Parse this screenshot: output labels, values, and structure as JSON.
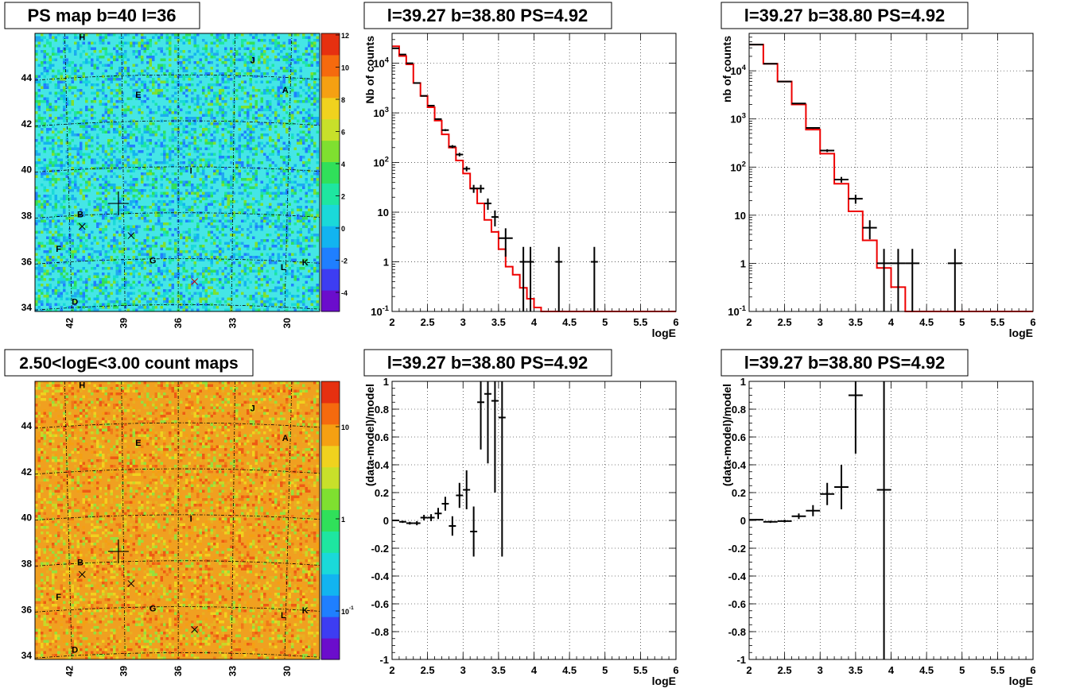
{
  "colors": {
    "data": "#000000",
    "model": "#ee0000",
    "grid": "#000000",
    "frame": "#000000"
  },
  "map_colorscale": [
    "#6b0dcc",
    "#3d3df2",
    "#1f7fff",
    "#12b4f0",
    "#1ad9d9",
    "#1ee6a0",
    "#30e05a",
    "#7fe030",
    "#c8e02a",
    "#f0d21e",
    "#f5a012",
    "#f56a0e",
    "#e63010"
  ],
  "chart_data": [
    {
      "id": "ps-map",
      "type": "heatmap",
      "title": "PS map b=40 l=36",
      "xticks": [
        "42",
        "39",
        "36",
        "33",
        "30"
      ],
      "yticks": [
        "44",
        "42",
        "40",
        "38",
        "36",
        "34"
      ],
      "colorbar_ticks": [
        "12",
        "10",
        "8",
        "6",
        "4",
        "2",
        "0",
        "-2",
        "-4"
      ],
      "background": "#44e6e6",
      "markers": [
        {
          "label": "H",
          "x": 41.3,
          "y": 45.6
        },
        {
          "label": "J",
          "x": 31.9,
          "y": 44.6
        },
        {
          "label": "E",
          "x": 38.2,
          "y": 43.1
        },
        {
          "label": "A",
          "x": 30.1,
          "y": 43.3
        },
        {
          "label": "I",
          "x": 35.3,
          "y": 39.8
        },
        {
          "label": "B",
          "x": 41.4,
          "y": 37.9
        },
        {
          "label": "F",
          "x": 42.6,
          "y": 36.4
        },
        {
          "label": "G",
          "x": 37.4,
          "y": 35.9
        },
        {
          "label": "L",
          "x": 30.2,
          "y": 35.6
        },
        {
          "label": "K",
          "x": 29.0,
          "y": 35.8
        },
        {
          "label": "D",
          "x": 41.7,
          "y": 34.1
        }
      ],
      "crosses": [
        {
          "x": 41.3,
          "y": 37.5
        },
        {
          "x": 38.6,
          "y": 37.1
        },
        {
          "x": 35.1,
          "y": 35.1
        }
      ],
      "big_cross": {
        "x": 39.3,
        "y": 38.5
      }
    },
    {
      "id": "spec-1",
      "type": "line",
      "title": "l=39.27 b=38.80 PS=4.92",
      "xlabel": "logE",
      "ylabel": "Nb of counts",
      "xlim": [
        2,
        6
      ],
      "ylim": [
        0.1,
        40000
      ],
      "yscale": "log",
      "xticks": [
        "2",
        "2.5",
        "3",
        "3.5",
        "4",
        "4.5",
        "5",
        "5.5",
        "6"
      ],
      "yticks": [
        "10^-1",
        "1",
        "10",
        "10^2",
        "10^3",
        "10^4"
      ],
      "model": {
        "edges": [
          2.0,
          2.1,
          2.2,
          2.3,
          2.4,
          2.5,
          2.6,
          2.7,
          2.8,
          2.9,
          3.0,
          3.1,
          3.2,
          3.3,
          3.4,
          3.5,
          3.6,
          3.7,
          3.8,
          3.9,
          4.0,
          4.1,
          4.2,
          6.0
        ],
        "values": [
          22000,
          14000,
          9500,
          4000,
          2200,
          1300,
          700,
          370,
          200,
          110,
          60,
          30,
          15,
          7,
          4,
          1.8,
          0.8,
          0.55,
          0.3,
          0.18,
          0.12,
          0.1,
          0.1
        ]
      },
      "data": [
        {
          "x": 2.05,
          "y": 20000,
          "xerr": 0.05
        },
        {
          "x": 2.15,
          "y": 15000,
          "xerr": 0.05
        },
        {
          "x": 2.25,
          "y": 10000,
          "xerr": 0.05
        },
        {
          "x": 2.35,
          "y": 4000,
          "xerr": 0.05
        },
        {
          "x": 2.45,
          "y": 2200,
          "xerr": 0.05
        },
        {
          "x": 2.55,
          "y": 1400,
          "xerr": 0.05
        },
        {
          "x": 2.65,
          "y": 750,
          "xerr": 0.05
        },
        {
          "x": 2.75,
          "y": 450,
          "xerr": 0.05
        },
        {
          "x": 2.85,
          "y": 210,
          "xerr": 0.05
        },
        {
          "x": 2.95,
          "y": 145,
          "xerr": 0.05
        },
        {
          "x": 3.05,
          "y": 75,
          "xerr": 0.05
        },
        {
          "x": 3.15,
          "y": 30,
          "xerr": 0.05
        },
        {
          "x": 3.25,
          "y": 30,
          "xerr": 0.05
        },
        {
          "x": 3.35,
          "y": 15,
          "xerr": 0.05
        },
        {
          "x": 3.45,
          "y": 8,
          "xerr": 0.05
        },
        {
          "x": 3.6,
          "y": 3,
          "xerr": 0.1
        },
        {
          "x": 3.85,
          "y": 1,
          "xerr": 0.05
        },
        {
          "x": 3.95,
          "y": 1,
          "xerr": 0.05
        },
        {
          "x": 4.35,
          "y": 1,
          "xerr": 0.05
        },
        {
          "x": 4.85,
          "y": 1,
          "xerr": 0.05
        }
      ]
    },
    {
      "id": "spec-2",
      "type": "line",
      "title": "l=39.27 b=38.80 PS=4.92",
      "xlabel": "logE",
      "ylabel": "nb of counts",
      "xlim": [
        2,
        6
      ],
      "ylim": [
        0.1,
        60000
      ],
      "yscale": "log",
      "xticks": [
        "2",
        "2.5",
        "3",
        "3.5",
        "4",
        "4.5",
        "5",
        "5.5",
        "6"
      ],
      "yticks": [
        "10^-1",
        "1",
        "10",
        "10^2",
        "10^3",
        "10^4"
      ],
      "model": {
        "edges": [
          2.0,
          2.2,
          2.4,
          2.6,
          2.8,
          3.0,
          3.2,
          3.4,
          3.6,
          3.8,
          4.0,
          4.2,
          6.0
        ],
        "values": [
          35000,
          14000,
          6000,
          2000,
          600,
          190,
          45,
          12,
          3,
          0.8,
          0.32,
          0.1
        ]
      },
      "data": [
        {
          "x": 2.1,
          "y": 35000,
          "xerr": 0.1
        },
        {
          "x": 2.3,
          "y": 14000,
          "xerr": 0.1
        },
        {
          "x": 2.5,
          "y": 6000,
          "xerr": 0.1
        },
        {
          "x": 2.7,
          "y": 2100,
          "xerr": 0.1
        },
        {
          "x": 2.9,
          "y": 650,
          "xerr": 0.1
        },
        {
          "x": 3.1,
          "y": 220,
          "xerr": 0.1
        },
        {
          "x": 3.3,
          "y": 55,
          "xerr": 0.1
        },
        {
          "x": 3.5,
          "y": 22,
          "xerr": 0.1
        },
        {
          "x": 3.7,
          "y": 5.5,
          "xerr": 0.1
        },
        {
          "x": 3.9,
          "y": 1,
          "xerr": 0.1
        },
        {
          "x": 4.1,
          "y": 1,
          "xerr": 0.1
        },
        {
          "x": 4.3,
          "y": 1,
          "xerr": 0.1
        },
        {
          "x": 4.9,
          "y": 1,
          "xerr": 0.1
        }
      ]
    },
    {
      "id": "count-map",
      "type": "heatmap",
      "title": "2.50<logE<3.00 count maps",
      "xticks": [
        "42",
        "39",
        "36",
        "33",
        "30"
      ],
      "yticks": [
        "44",
        "42",
        "40",
        "38",
        "36",
        "34"
      ],
      "colorbar_ticks": [
        "10",
        "1",
        "10^-1"
      ],
      "background": "#f0a020",
      "markers": [
        {
          "label": "H",
          "x": 41.3,
          "y": 45.6
        },
        {
          "label": "J",
          "x": 31.9,
          "y": 44.6
        },
        {
          "label": "E",
          "x": 38.2,
          "y": 43.1
        },
        {
          "label": "A",
          "x": 30.1,
          "y": 43.3
        },
        {
          "label": "I",
          "x": 35.3,
          "y": 39.8
        },
        {
          "label": "B",
          "x": 41.4,
          "y": 37.9
        },
        {
          "label": "F",
          "x": 42.6,
          "y": 36.4
        },
        {
          "label": "G",
          "x": 37.4,
          "y": 35.9
        },
        {
          "label": "L",
          "x": 30.2,
          "y": 35.6
        },
        {
          "label": "K",
          "x": 29.0,
          "y": 35.8
        },
        {
          "label": "D",
          "x": 41.7,
          "y": 34.1
        }
      ],
      "crosses": [
        {
          "x": 41.3,
          "y": 37.5
        },
        {
          "x": 38.6,
          "y": 37.1
        },
        {
          "x": 35.1,
          "y": 35.1
        }
      ],
      "big_cross": {
        "x": 39.3,
        "y": 38.5
      }
    },
    {
      "id": "resid-1",
      "type": "scatter",
      "title": "l=39.27 b=38.80 PS=4.92",
      "xlabel": "logE",
      "ylabel": "(data-model)/model",
      "xlim": [
        2,
        6
      ],
      "ylim": [
        -1,
        1
      ],
      "xticks": [
        "2",
        "2.5",
        "3",
        "3.5",
        "4",
        "4.5",
        "5",
        "5.5",
        "6"
      ],
      "yticks": [
        "-1",
        "-0.8",
        "-0.6",
        "-0.4",
        "-0.2",
        "0",
        "0.2",
        "0.4",
        "0.6",
        "0.8",
        "1"
      ],
      "data": [
        {
          "x": 2.05,
          "y": 0.0,
          "xerr": 0.05,
          "yerr": 0.005
        },
        {
          "x": 2.15,
          "y": -0.01,
          "xerr": 0.05,
          "yerr": 0.008
        },
        {
          "x": 2.25,
          "y": -0.02,
          "xerr": 0.05,
          "yerr": 0.01
        },
        {
          "x": 2.35,
          "y": -0.02,
          "xerr": 0.05,
          "yerr": 0.015
        },
        {
          "x": 2.45,
          "y": 0.02,
          "xerr": 0.05,
          "yerr": 0.02
        },
        {
          "x": 2.55,
          "y": 0.02,
          "xerr": 0.05,
          "yerr": 0.025
        },
        {
          "x": 2.65,
          "y": 0.05,
          "xerr": 0.05,
          "yerr": 0.04
        },
        {
          "x": 2.75,
          "y": 0.12,
          "xerr": 0.05,
          "yerr": 0.05
        },
        {
          "x": 2.85,
          "y": -0.04,
          "xerr": 0.05,
          "yerr": 0.07
        },
        {
          "x": 2.95,
          "y": 0.18,
          "xerr": 0.05,
          "yerr": 0.09
        },
        {
          "x": 3.05,
          "y": 0.22,
          "xerr": 0.05,
          "yerr": 0.14
        },
        {
          "x": 3.15,
          "y": -0.08,
          "xerr": 0.05,
          "yerr": 0.18
        },
        {
          "x": 3.25,
          "y": 0.85,
          "xerr": 0.05,
          "yerr": 0.34
        },
        {
          "x": 3.35,
          "y": 0.91,
          "xerr": 0.05,
          "yerr": 0.5
        },
        {
          "x": 3.45,
          "y": 0.86,
          "xerr": 0.05,
          "yerr": 0.66
        },
        {
          "x": 3.55,
          "y": 0.74,
          "xerr": 0.05,
          "yerr": 1.0
        }
      ]
    },
    {
      "id": "resid-2",
      "type": "scatter",
      "title": "l=39.27 b=38.80 PS=4.92",
      "xlabel": "logE",
      "ylabel": "(data-model)/model",
      "xlim": [
        2,
        6
      ],
      "ylim": [
        -1,
        1
      ],
      "xticks": [
        "2",
        "2.5",
        "3",
        "3.5",
        "4",
        "4.5",
        "5",
        "5.5",
        "6"
      ],
      "yticks": [
        "-1",
        "-0.8",
        "-0.6",
        "-0.4",
        "-0.2",
        "0",
        "0.2",
        "0.4",
        "0.6",
        "0.8",
        "1"
      ],
      "data": [
        {
          "x": 2.1,
          "y": 0.005,
          "xerr": 0.1,
          "yerr": 0.005
        },
        {
          "x": 2.3,
          "y": -0.01,
          "xerr": 0.1,
          "yerr": 0.008
        },
        {
          "x": 2.5,
          "y": -0.005,
          "xerr": 0.1,
          "yerr": 0.01
        },
        {
          "x": 2.7,
          "y": 0.03,
          "xerr": 0.1,
          "yerr": 0.02
        },
        {
          "x": 2.9,
          "y": 0.07,
          "xerr": 0.1,
          "yerr": 0.04
        },
        {
          "x": 3.1,
          "y": 0.19,
          "xerr": 0.1,
          "yerr": 0.08
        },
        {
          "x": 3.3,
          "y": 0.24,
          "xerr": 0.1,
          "yerr": 0.16
        },
        {
          "x": 3.5,
          "y": 0.9,
          "xerr": 0.1,
          "yerr": 0.42
        },
        {
          "x": 3.9,
          "y": 0.22,
          "xerr": 0.1,
          "yerr": 1.3
        }
      ]
    }
  ]
}
